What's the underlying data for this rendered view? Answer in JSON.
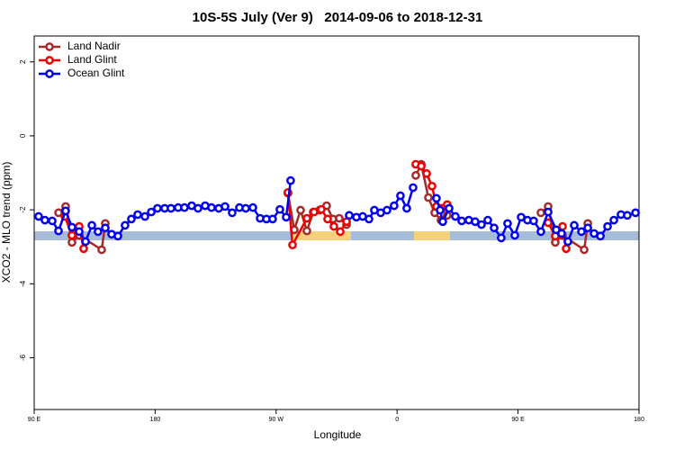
{
  "chart_data": {
    "type": "line",
    "title": "10S-5S July (Ver 9)   2014-09-06 to 2018-12-31",
    "x_label": "Longitude",
    "y_label": "XCO2 - MLO trend (ppm)",
    "xlim": [
      90,
      540
    ],
    "ylim": [
      -7.4,
      2.7
    ],
    "xticks": [
      {
        "value": 90,
        "label": "90 E"
      },
      180,
      {
        "value": 270,
        "label": "90 W"
      },
      {
        "value": 360,
        "label": "0"
      },
      {
        "value": 450,
        "label": "90 E"
      },
      {
        "value": 540,
        "label": "180"
      }
    ],
    "yticks": [
      2,
      0,
      -2,
      -4,
      -6
    ],
    "legend": "top-left",
    "series": [
      {
        "name": "Land Nadir",
        "color": "#a52a2a",
        "x": [
          108.1,
          113.4,
          118.1,
          123.5,
          140.2,
          142.9,
          null,
          278.8,
          283.5,
          288.2,
          292.9,
          297.6,
          302.3,
          307.6,
          312.3,
          317.0,
          322.4,
          null,
          373.9,
          378.0,
          383.3,
          388.0,
          392.7,
          397.3,
          null,
          467.0,
          472.4,
          477.7,
          483.1,
          499.2,
          501.9
        ],
        "values": [
          -2.08,
          -1.91,
          -2.88,
          -2.69,
          -3.08,
          -2.37,
          null,
          -1.55,
          -2.54,
          -2.01,
          -2.57,
          -2.06,
          -2.01,
          -1.89,
          -2.25,
          -2.23,
          -2.4,
          null,
          -1.07,
          -0.77,
          -1.67,
          -2.08,
          -2.28,
          -2.15,
          null,
          -2.08,
          -1.91,
          -2.88,
          -2.69,
          -3.08,
          -2.37
        ]
      },
      {
        "name": "Land Glint",
        "color": "#ee0000",
        "x": [
          112.8,
          118.1,
          123.5,
          126.8,
          null,
          278.8,
          282.2,
          292.9,
          298.2,
          303.6,
          308.3,
          313.0,
          317.7,
          322.4,
          null,
          373.9,
          378.0,
          382.0,
          386.0,
          389.3,
          393.3,
          397.3,
          null,
          472.4,
          477.7,
          483.1,
          485.8
        ],
        "values": [
          -2.18,
          -2.69,
          -2.45,
          -3.05,
          null,
          -1.53,
          -2.95,
          -2.23,
          -2.06,
          -1.99,
          -2.25,
          -2.45,
          -2.59,
          -2.32,
          null,
          -0.77,
          -0.82,
          -1.02,
          -1.36,
          -1.91,
          -1.96,
          -1.86,
          null,
          -2.35,
          -2.71,
          -2.45,
          -3.05
        ]
      },
      {
        "name": "Ocean Glint",
        "color": "#0000ee",
        "x": [
          93.3,
          98.0,
          103.4,
          108.1,
          113.4,
          118.1,
          123.5,
          128.2,
          132.9,
          137.5,
          142.9,
          147.6,
          152.3,
          157.6,
          162.3,
          167.0,
          172.4,
          177.1,
          181.7,
          187.1,
          191.8,
          197.1,
          201.8,
          207.2,
          211.9,
          217.2,
          221.9,
          227.3,
          232.0,
          237.3,
          242.7,
          247.4,
          252.7,
          258.1,
          262.8,
          267.4,
          272.8,
          277.5,
          280.8,
          null,
          324.4,
          329.7,
          334.4,
          339.1,
          343.1,
          347.8,
          352.5,
          357.8,
          362.5,
          367.2,
          371.9,
          null,
          389.3,
          392.0,
          394.0,
          398.7,
          403.4,
          408.1,
          413.4,
          418.1,
          422.8,
          427.5,
          432.2,
          437.5,
          442.2,
          447.6,
          452.3,
          457.0,
          461.6,
          467.0,
          472.4,
          478.4,
          482.4,
          487.1,
          491.8,
          497.2,
          501.9,
          506.6,
          511.3,
          516.6,
          521.3,
          526.6,
          531.3,
          537.4
        ],
        "values": [
          -2.18,
          -2.28,
          -2.3,
          -2.57,
          -2.03,
          -2.47,
          -2.59,
          -2.86,
          -2.42,
          -2.59,
          -2.49,
          -2.66,
          -2.71,
          -2.42,
          -2.25,
          -2.13,
          -2.18,
          -2.06,
          -1.96,
          -1.96,
          -1.96,
          -1.94,
          -1.94,
          -1.89,
          -1.96,
          -1.89,
          -1.94,
          -1.96,
          -1.91,
          -2.08,
          -1.94,
          -1.96,
          -1.94,
          -2.23,
          -2.25,
          -2.25,
          -1.99,
          -2.2,
          -1.21,
          null,
          -2.15,
          -2.2,
          -2.18,
          -2.25,
          -2.01,
          -2.08,
          -2.01,
          -1.89,
          -1.62,
          -1.96,
          -1.4,
          null,
          -1.69,
          -2.01,
          -2.32,
          -1.96,
          -2.18,
          -2.3,
          -2.28,
          -2.32,
          -2.4,
          -2.28,
          -2.49,
          -2.76,
          -2.37,
          -2.69,
          -2.2,
          -2.28,
          -2.3,
          -2.59,
          -2.06,
          -2.54,
          -2.64,
          -2.86,
          -2.42,
          -2.59,
          -2.49,
          -2.64,
          -2.71,
          -2.45,
          -2.28,
          -2.13,
          -2.15,
          -2.08
        ]
      }
    ]
  }
}
